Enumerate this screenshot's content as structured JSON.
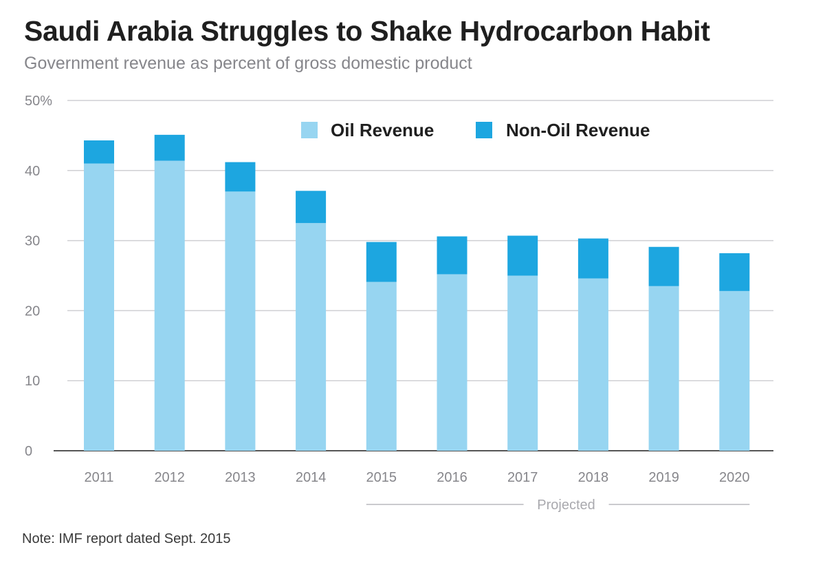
{
  "title": "Saudi Arabia Struggles to Shake Hydrocarbon Habit",
  "subtitle": "Government revenue as percent of gross domestic product",
  "note": "Note: IMF report dated Sept. 2015",
  "colors": {
    "oil": "#97d5f1",
    "non_oil": "#1da6e0",
    "grid": "#cfcfd3",
    "axis": "#555555"
  },
  "chart_data": {
    "type": "bar",
    "stacked": true,
    "categories": [
      "2011",
      "2012",
      "2013",
      "2014",
      "2015",
      "2016",
      "2017",
      "2018",
      "2019",
      "2020"
    ],
    "series": [
      {
        "name": "Oil Revenue",
        "values": [
          41.0,
          41.4,
          37.0,
          32.5,
          24.1,
          25.2,
          25.0,
          24.6,
          23.5,
          22.8
        ]
      },
      {
        "name": "Non-Oil Revenue",
        "values": [
          3.3,
          3.7,
          4.2,
          4.6,
          5.7,
          5.4,
          5.7,
          5.7,
          5.6,
          5.4
        ]
      }
    ],
    "ylim": [
      0,
      50
    ],
    "y_ticks": [
      0,
      10,
      20,
      30,
      40,
      50
    ],
    "y_tick_labels": [
      "0",
      "10",
      "20",
      "30",
      "40",
      "50%"
    ],
    "legend_position": "top-right",
    "grid": true,
    "projected_label": "Projected",
    "projected_range": [
      "2015",
      "2020"
    ]
  }
}
